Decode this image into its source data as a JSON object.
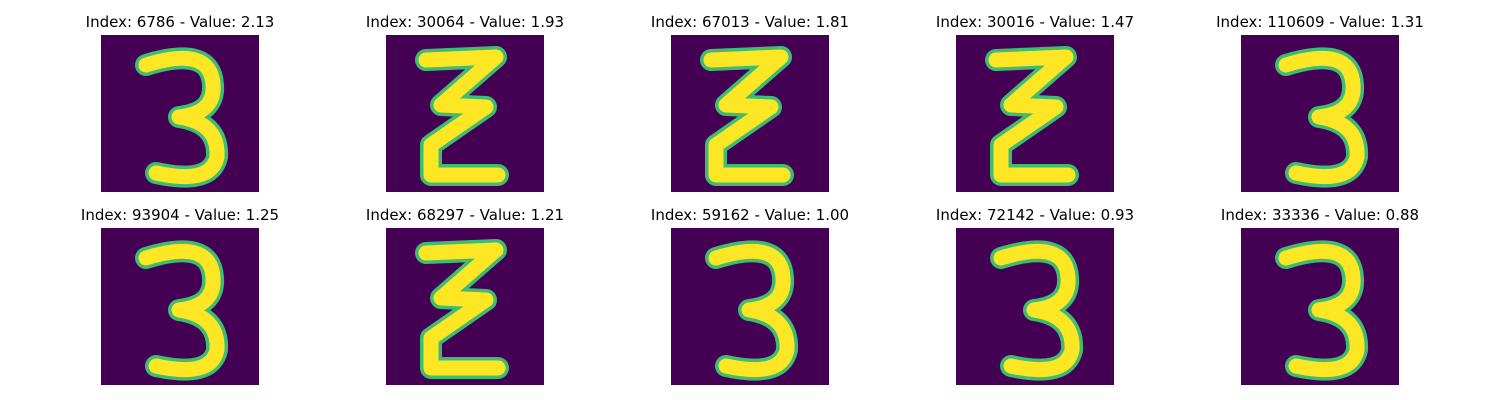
{
  "panels": [
    {
      "title": "Index: 6786 - Value: 2.13",
      "digit": "3",
      "style": "three-round"
    },
    {
      "title": "Index: 30064 - Value: 1.93",
      "digit": "3",
      "style": "three-z"
    },
    {
      "title": "Index: 67013 - Value: 1.81",
      "digit": "3",
      "style": "three-z"
    },
    {
      "title": "Index: 30016 - Value: 1.47",
      "digit": "3",
      "style": "three-z"
    },
    {
      "title": "Index: 110609 - Value: 1.31",
      "digit": "3",
      "style": "three-round"
    },
    {
      "title": "Index: 93904 - Value: 1.25",
      "digit": "3",
      "style": "three-round"
    },
    {
      "title": "Index: 68297 - Value: 1.21",
      "digit": "3",
      "style": "three-z"
    },
    {
      "title": "Index: 59162 - Value: 1.00",
      "digit": "3",
      "style": "three-round"
    },
    {
      "title": "Index: 72142 - Value: 0.93",
      "digit": "3",
      "style": "three-round"
    },
    {
      "title": "Index: 33336 - Value: 0.88",
      "digit": "3",
      "style": "three-round"
    }
  ],
  "colors": {
    "background": "#440154",
    "stroke": "#fde725",
    "edge": "#3fbc73"
  }
}
